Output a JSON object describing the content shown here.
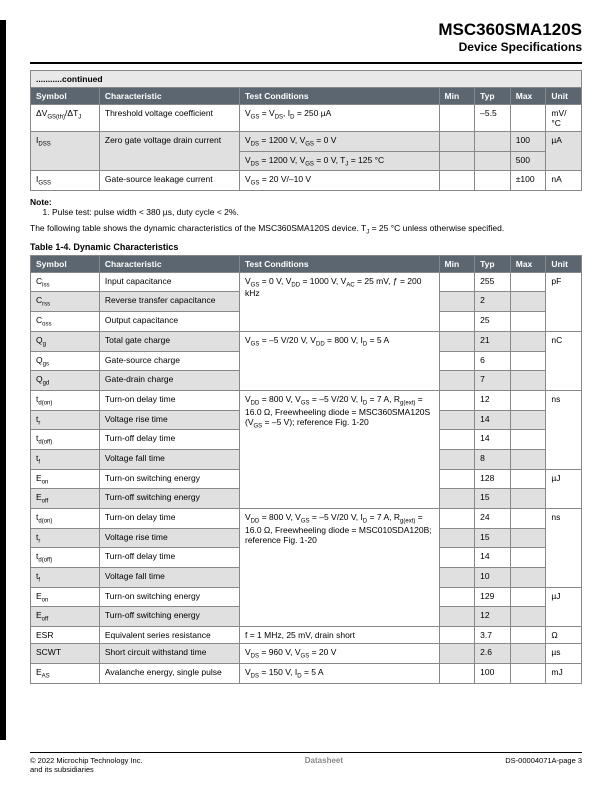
{
  "header": {
    "part_number": "MSC360SMA120S",
    "subtitle": "Device Specifications"
  },
  "table1": {
    "continued": "...........continued",
    "headers": [
      "Symbol",
      "Characteristic",
      "Test Conditions",
      "Min",
      "Typ",
      "Max",
      "Unit"
    ],
    "rows": [
      {
        "sym": "ΔV_GS(th)/ΔT_J",
        "char": "Threshold voltage coefficient",
        "cond": "V_GS = V_DS, I_D = 250 µA",
        "min": "",
        "typ": "–5.5",
        "max": "",
        "unit": "mV/°C",
        "alt": false
      },
      {
        "sym": "I_DSS",
        "char": "Zero gate voltage drain current",
        "cond": "V_DS = 1200 V, V_GS = 0 V",
        "min": "",
        "typ": "",
        "max": "100",
        "unit": "µA",
        "alt": true,
        "rowspan": 2
      },
      {
        "cond": "V_DS = 1200 V, V_GS = 0 V, T_J = 125 °C",
        "min": "",
        "typ": "",
        "max": "500",
        "alt": true,
        "sub": true
      },
      {
        "sym": "I_GSS",
        "char": "Gate-source leakage current",
        "cond": "V_GS = 20 V/–10 V",
        "min": "",
        "typ": "",
        "max": "±100",
        "unit": "nA",
        "alt": false
      }
    ]
  },
  "note": {
    "title": "Note:",
    "items": [
      "Pulse test: pulse width < 380 µs, duty cycle < 2%."
    ]
  },
  "intro": "The following table shows the dynamic characteristics of the MSC360SMA120S device. T_J = 25 °C unless otherwise specified.",
  "table2": {
    "caption": "Table 1-4. Dynamic Characteristics",
    "headers": [
      "Symbol",
      "Characteristic",
      "Test Conditions",
      "Min",
      "Typ",
      "Max",
      "Unit"
    ],
    "groups": [
      {
        "cond": "V_GS = 0 V, V_DD = 1000 V, V_AC = 25 mV, ƒ = 200 kHz",
        "unit": "pF",
        "rows": [
          {
            "sym": "C_iss",
            "char": "Input capacitance",
            "typ": "255",
            "alt": false
          },
          {
            "sym": "C_rss",
            "char": "Reverse transfer capacitance",
            "typ": "2",
            "alt": true
          },
          {
            "sym": "C_oss",
            "char": "Output capacitance",
            "typ": "25",
            "alt": false
          }
        ]
      },
      {
        "cond": "V_GS = –5 V/20 V, V_DD = 800 V, I_D = 5 A",
        "unit": "nC",
        "rows": [
          {
            "sym": "Q_g",
            "char": "Total gate charge",
            "typ": "21",
            "alt": true
          },
          {
            "sym": "Q_gs",
            "char": "Gate-source charge",
            "typ": "6",
            "alt": false
          },
          {
            "sym": "Q_gd",
            "char": "Gate-drain charge",
            "typ": "7",
            "alt": true
          }
        ]
      },
      {
        "cond": "V_DD = 800 V, V_GS = –5 V/20 V, I_D = 7 A, R_g(ext) = 16.0 Ω, Freewheeling diode = MSC360SMA120S (V_GS = –5 V); reference Fig. 1-20",
        "rows": [
          {
            "sym": "t_d(on)",
            "char": "Turn-on delay time",
            "typ": "12",
            "alt": false,
            "unit": "ns",
            "unitspan": 4
          },
          {
            "sym": "t_r",
            "char": "Voltage rise time",
            "typ": "14",
            "alt": true
          },
          {
            "sym": "t_d(off)",
            "char": "Turn-off delay time",
            "typ": "14",
            "alt": false
          },
          {
            "sym": "t_f",
            "char": "Voltage fall time",
            "typ": "8",
            "alt": true
          },
          {
            "sym": "E_on",
            "char": "Turn-on switching energy",
            "typ": "128",
            "alt": false,
            "unit": "µJ",
            "unitspan": 2
          },
          {
            "sym": "E_off",
            "char": "Turn-off switching energy",
            "typ": "15",
            "alt": true
          }
        ]
      },
      {
        "cond": "V_DD = 800 V, V_GS = –5 V/20 V, I_D = 7 A, R_g(ext) = 16.0 Ω, Freewheeling diode = MSC010SDA120B; reference Fig. 1-20",
        "rows": [
          {
            "sym": "t_d(on)",
            "char": "Turn-on delay time",
            "typ": "24",
            "alt": false,
            "unit": "ns",
            "unitspan": 4
          },
          {
            "sym": "t_r",
            "char": "Voltage rise time",
            "typ": "15",
            "alt": true
          },
          {
            "sym": "t_d(off)",
            "char": "Turn-off delay time",
            "typ": "14",
            "alt": false
          },
          {
            "sym": "t_f",
            "char": "Voltage fall time",
            "typ": "10",
            "alt": true
          },
          {
            "sym": "E_on",
            "char": "Turn-on switching energy",
            "typ": "129",
            "alt": false,
            "unit": "µJ",
            "unitspan": 2
          },
          {
            "sym": "E_off",
            "char": "Turn-off switching energy",
            "typ": "12",
            "alt": true
          }
        ]
      },
      {
        "cond": "f = 1 MHz, 25 mV, drain short",
        "rows": [
          {
            "sym": "ESR",
            "char": "Equivalent series resistance",
            "typ": "3.7",
            "alt": false,
            "unit": "Ω",
            "unitspan": 1
          }
        ]
      },
      {
        "cond": "V_DS = 960 V, V_GS = 20 V",
        "rows": [
          {
            "sym": "SCWT",
            "char": "Short circuit withstand time",
            "typ": "2.6",
            "alt": true,
            "unit": "µs",
            "unitspan": 1
          }
        ]
      },
      {
        "cond": "V_DS = 150 V, I_D = 5 A",
        "rows": [
          {
            "sym": "E_AS",
            "char": "Avalanche energy, single pulse",
            "typ": "100",
            "alt": false,
            "unit": "mJ",
            "unitspan": 1
          }
        ]
      }
    ]
  },
  "footer": {
    "left1": "© 2022 Microchip Technology Inc.",
    "left2": "and its subsidiaries",
    "center": "Datasheet",
    "right": "DS-00004071A-page 3"
  }
}
